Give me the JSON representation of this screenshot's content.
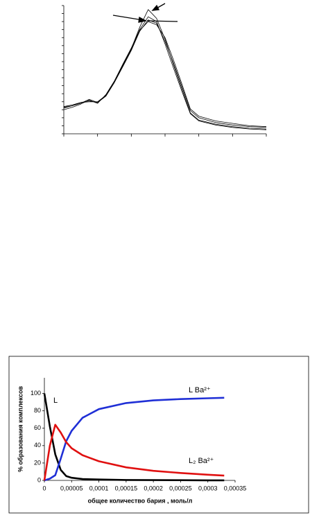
{
  "chart_data": [
    {
      "type": "line",
      "x": [
        0,
        0.25,
        0.5,
        0.75,
        1,
        1.25,
        1.5,
        1.75,
        2,
        2.25,
        2.5,
        2.75,
        3,
        3.25,
        3.5,
        3.75,
        4,
        4.5,
        5,
        5.5,
        6
      ],
      "xlim": [
        0,
        6
      ],
      "ylim": [
        0,
        16
      ],
      "series": [
        {
          "color": "#000000",
          "values": [
            3.2,
            3.5,
            3.8,
            4.3,
            3.9,
            4.8,
            6.5,
            8.6,
            10.6,
            13.3,
            15.5,
            14.4,
            11.8,
            8.6,
            5.6,
            2.6,
            1.7,
            1.2,
            0.9,
            0.7,
            0.6
          ]
        },
        {
          "color": "#000000",
          "values": [
            3.4,
            3.6,
            3.9,
            4.1,
            3.9,
            4.7,
            6.4,
            8.4,
            10.4,
            12.8,
            14.2,
            13.8,
            11.5,
            8.8,
            5.9,
            2.9,
            2.0,
            1.4,
            1.1,
            0.9,
            0.8
          ]
        },
        {
          "color": "#000000",
          "values": [
            3.0,
            3.3,
            3.7,
            4.2,
            3.8,
            4.9,
            6.6,
            8.7,
            10.7,
            13.0,
            14.6,
            14.0,
            11.2,
            8.2,
            5.3,
            2.5,
            1.6,
            1.1,
            0.8,
            0.6,
            0.5
          ]
        },
        {
          "color": "#000000",
          "values": [
            3.3,
            3.5,
            3.9,
            4.0,
            4.0,
            4.8,
            6.5,
            8.5,
            10.5,
            12.9,
            14.0,
            13.6,
            12.0,
            9.2,
            6.2,
            3.1,
            2.2,
            1.6,
            1.3,
            1.0,
            0.9
          ]
        }
      ]
    },
    {
      "type": "line",
      "y_label": "% образования комплексов",
      "x_label": "общее количество бария , моль/л",
      "x": [
        0,
        1e-05,
        2e-05,
        3e-05,
        4e-05,
        5e-05,
        7e-05,
        0.0001,
        0.00015,
        0.0002,
        0.00025,
        0.0003,
        0.00033
      ],
      "xlim": [
        0,
        0.00035
      ],
      "ylim": [
        0,
        118
      ],
      "xticks": [
        0,
        {
          "value": 5e-05,
          "label": "0,00005"
        },
        {
          "value": 0.0001,
          "label": "0,0001"
        },
        {
          "value": 0.00015,
          "label": "0,00015"
        },
        {
          "value": 0.0002,
          "label": "0,0002"
        },
        {
          "value": 0.00025,
          "label": "0,00025"
        },
        {
          "value": 0.0003,
          "label": "0,0003"
        },
        {
          "value": 0.00035,
          "label": "0,00035"
        }
      ],
      "yticks": [
        0,
        20,
        40,
        60,
        80,
        100
      ],
      "series": [
        {
          "name": "L",
          "color": "#000000",
          "values": [
            100,
            62,
            30,
            12,
            5,
            3,
            1.5,
            1,
            0.5,
            0.3,
            0.2,
            0.1,
            0.1
          ]
        },
        {
          "name": "L Ba²⁺",
          "color": "#1f2fd6",
          "values": [
            0,
            2,
            6,
            25,
            45,
            57,
            72,
            82,
            89,
            92,
            93.5,
            94.5,
            95
          ]
        },
        {
          "name": "L₂ Ba²⁺",
          "color": "#e01010",
          "values": [
            0,
            40,
            64,
            55,
            44,
            37,
            29,
            22,
            15,
            11,
            8.5,
            6.5,
            5.5
          ]
        }
      ]
    }
  ]
}
